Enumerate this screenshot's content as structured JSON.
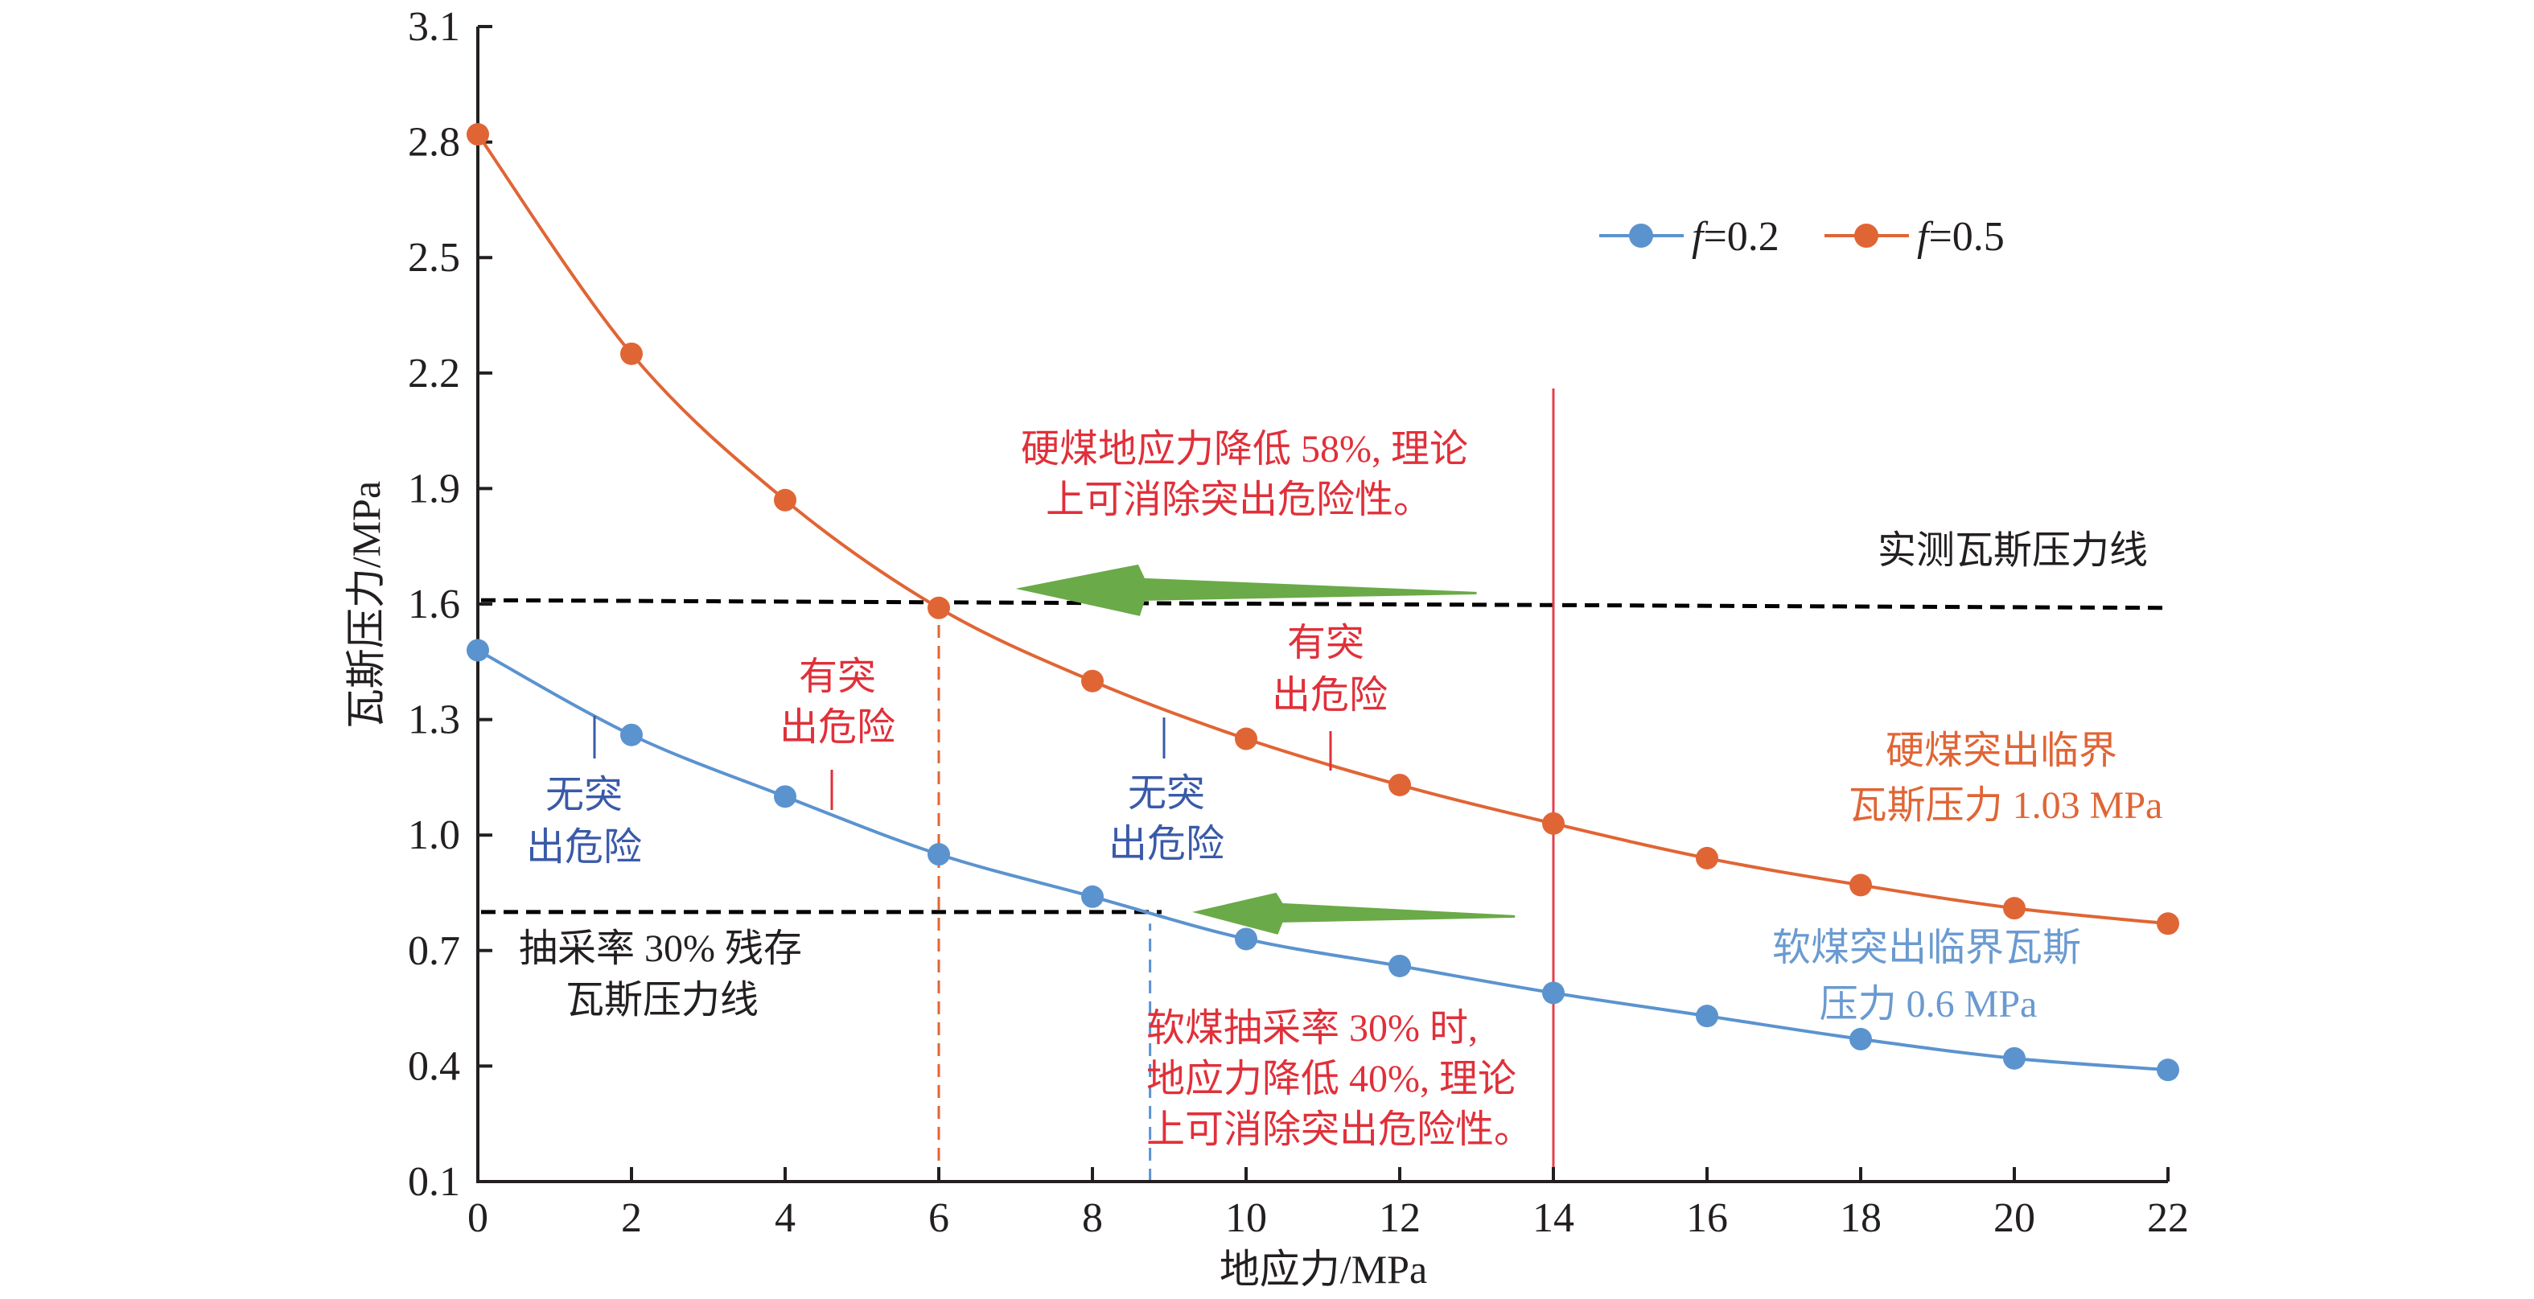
{
  "chart_data": {
    "type": "line",
    "title": "",
    "xlabel": "地应力/MPa",
    "ylabel": "瓦斯压力/MPa",
    "xlim": [
      0,
      22
    ],
    "ylim": [
      0.1,
      3.1
    ],
    "x_ticks": [
      0,
      2,
      4,
      6,
      8,
      10,
      12,
      14,
      16,
      18,
      20,
      22
    ],
    "x_tick_labels": [
      "0",
      "2",
      "4",
      "6",
      "8",
      "10",
      "12",
      "14",
      "16",
      "18",
      "20",
      "22"
    ],
    "y_ticks": [
      0.1,
      0.4,
      0.7,
      1.0,
      1.3,
      1.6,
      1.9,
      2.2,
      2.5,
      2.8,
      3.1
    ],
    "y_tick_labels": [
      "0.1",
      "0.4",
      "0.7",
      "1.0",
      "1.3",
      "1.6",
      "1.9",
      "2.2",
      "2.5",
      "2.8",
      "3.1"
    ],
    "grid": false,
    "legend_position": "top-right",
    "x": [
      0,
      2,
      4,
      6,
      8,
      10,
      12,
      14,
      16,
      18,
      20,
      22
    ],
    "series": [
      {
        "name": "f=0.2",
        "legend_italic": "f",
        "legend_rest": "=0.2",
        "color": "#5b93cf",
        "values": [
          1.48,
          1.26,
          1.1,
          0.95,
          0.84,
          0.73,
          0.66,
          0.59,
          0.53,
          0.47,
          0.42,
          0.39
        ]
      },
      {
        "name": "f=0.5",
        "legend_italic": "f",
        "legend_rest": "=0.5",
        "color": "#e06535",
        "values": [
          2.82,
          2.25,
          1.87,
          1.59,
          1.4,
          1.25,
          1.13,
          1.03,
          0.94,
          0.87,
          0.81,
          0.77
        ]
      }
    ],
    "reference_lines": [
      {
        "name": "measured-gas-pressure-line",
        "orientation": "horizontal",
        "style": "dashed",
        "color": "#000000",
        "y_start": 1.61,
        "y_end": 1.59,
        "x_start": 0,
        "x_end": 22
      },
      {
        "name": "residual-gas-pressure-line",
        "orientation": "horizontal",
        "style": "dashed",
        "color": "#000000",
        "y": 0.8,
        "x_start": 0,
        "x_end": 8.9
      },
      {
        "name": "hard-coal-drop-line",
        "orientation": "vertical",
        "style": "dashed",
        "color": "#e06535",
        "x": 6,
        "y_start": 0.1,
        "y_end": 1.59
      },
      {
        "name": "soft-coal-drop-line",
        "orientation": "vertical",
        "style": "dashed",
        "color": "#5b93cf",
        "x": 8.75,
        "y_start": 0.1,
        "y_end": 0.77
      },
      {
        "name": "current-stress-line",
        "orientation": "vertical",
        "style": "solid",
        "color": "#e2404f",
        "x": 14,
        "y_start": 0.1,
        "y_end": 2.16
      }
    ],
    "arrows": [
      {
        "name": "hard-coal-arrow",
        "color": "#6aaa48",
        "from_x": 13,
        "to_x": 7,
        "y": 1.64
      },
      {
        "name": "soft-coal-arrow",
        "color": "#6aaa48",
        "from_x": 13.5,
        "to_x": 9.3,
        "y": 0.8
      }
    ],
    "annotations": {
      "measured_line_label": [
        "实测瓦斯压力线"
      ],
      "residual_line_label": [
        "抽采率 30% 残存",
        "瓦斯压力线"
      ],
      "hard_coal_note": [
        "硬煤地应力降低 58%, 理论",
        "上可消除突出危险性。"
      ],
      "soft_coal_note": [
        "软煤抽采率 30% 时,",
        "地应力降低 40%, 理论",
        "上可消除突出危险性。"
      ],
      "hard_critical_label": [
        "硬煤突出临界",
        "瓦斯压力 1.03 MPa"
      ],
      "soft_critical_label": [
        "软煤突出临界瓦斯",
        "压力 0.6 MPa"
      ],
      "no_danger_left": [
        "无突",
        "出危险"
      ],
      "danger_left": [
        "有突",
        "出危险"
      ],
      "no_danger_right": [
        "无突",
        "出危险"
      ],
      "danger_right": [
        "有突",
        "出危险"
      ]
    },
    "colors": {
      "axis": "#231f20",
      "red_text": "#e0303a",
      "blue_text": "#3a5aa8",
      "orange_text": "#e06535",
      "light_blue_text": "#6a9ad0",
      "black_text": "#231f20"
    }
  }
}
